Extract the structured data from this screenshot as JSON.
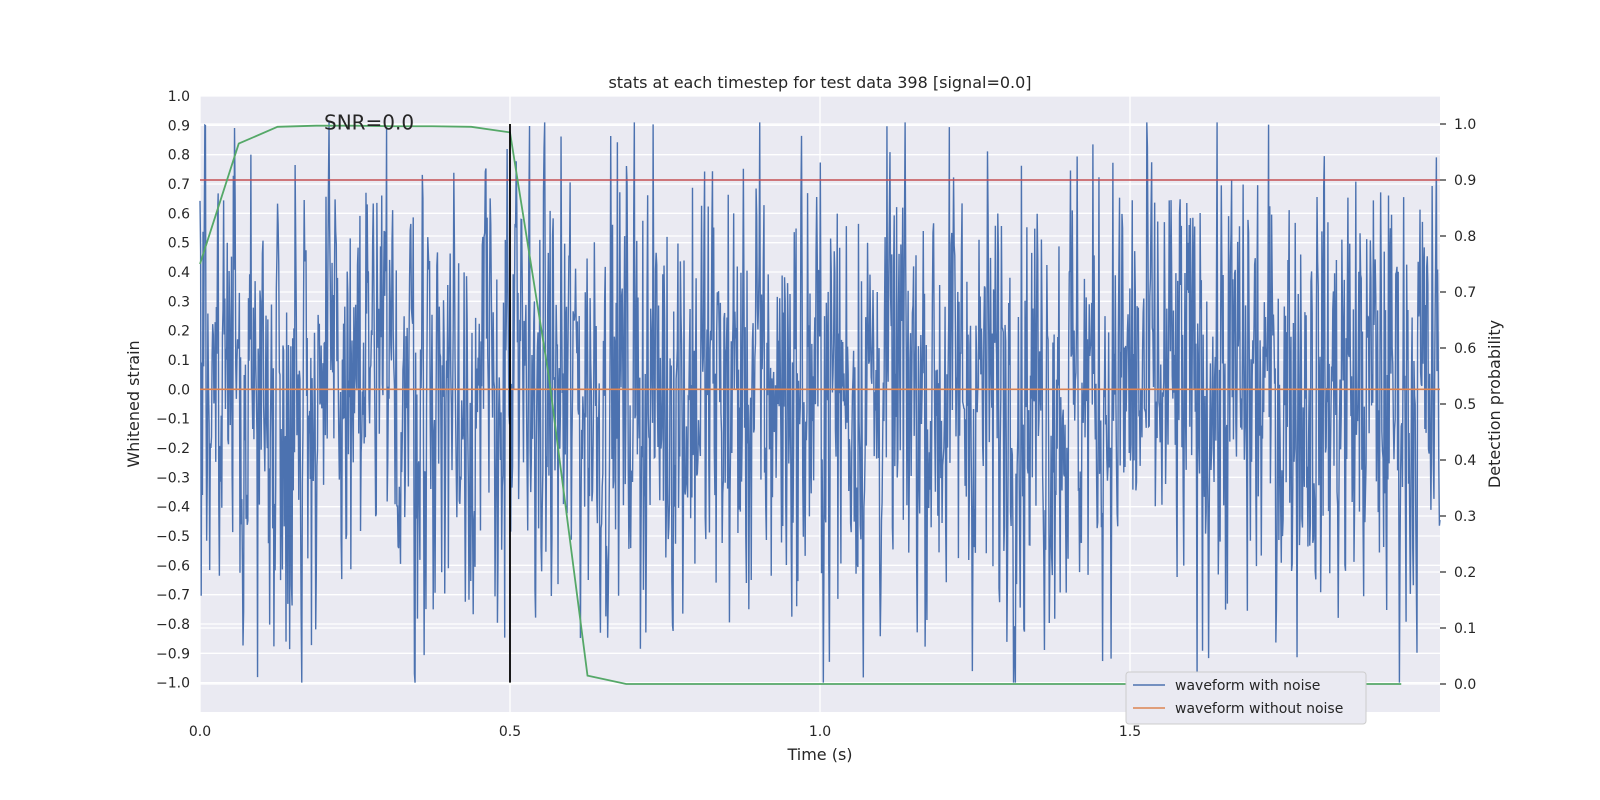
{
  "chart_data": {
    "type": "line",
    "title": "stats at each timestep for test data 398 [signal=0.0]",
    "xlabel": "Time (s)",
    "ylabel": "Whitened strain",
    "y2label": "Detection probability",
    "xlim": [
      0.0,
      2.0
    ],
    "ylim": [
      -1.1,
      1.0
    ],
    "y2lim": [
      -0.05,
      1.05
    ],
    "x_ticks": [
      0.0,
      0.5,
      1.0,
      1.5
    ],
    "x_tick_labels": [
      "0.0",
      "0.5",
      "1.0",
      "1.5"
    ],
    "y_ticks": [
      1.0,
      0.9,
      0.8,
      0.7,
      0.6,
      0.5,
      0.4,
      0.3,
      0.2,
      0.1,
      0.0,
      -0.1,
      -0.2,
      -0.3,
      -0.4,
      -0.5,
      -0.6,
      -0.7,
      -0.8,
      -0.9,
      -1.0
    ],
    "y_tick_labels": [
      "1.0",
      "0.9",
      "0.8",
      "0.7",
      "0.6",
      "0.5",
      "0.4",
      "0.3",
      "0.2",
      "0.1",
      "0.0",
      "−0.1",
      "−0.2",
      "−0.3",
      "−0.4",
      "−0.5",
      "−0.6",
      "−0.7",
      "−0.8",
      "−0.9",
      "−1.0"
    ],
    "y2_ticks": [
      1.0,
      0.9,
      0.8,
      0.7,
      0.6,
      0.5,
      0.4,
      0.3,
      0.2,
      0.1,
      0.0
    ],
    "y2_tick_labels": [
      "1.0",
      "0.9",
      "0.8",
      "0.7",
      "0.6",
      "0.5",
      "0.4",
      "0.3",
      "0.2",
      "0.1",
      "0.0"
    ],
    "grid": true,
    "legend_placement": "lower-right",
    "annotation": {
      "text": "SNR=0.0",
      "x": 0.2,
      "y": 0.91
    },
    "noise_waveform": {
      "name": "waveform with noise",
      "color": "#4c72b0",
      "x_start": 0.0,
      "x_end": 2.0,
      "y_range": [
        -1.0,
        0.91
      ]
    },
    "clean_waveform": {
      "name": "waveform without noise",
      "color": "#dd8452",
      "value": 0.0
    },
    "detection_probability": {
      "color": "#55a868",
      "axis": "right",
      "x": [
        0.0,
        0.0625,
        0.125,
        0.1875,
        0.25,
        0.3125,
        0.375,
        0.4375,
        0.5,
        0.5625,
        0.625,
        0.6875,
        0.75,
        0.8125,
        0.875,
        0.9375,
        1.0,
        1.0625,
        1.125,
        1.1875,
        1.25,
        1.3125,
        1.375,
        1.4375,
        1.5,
        1.5625,
        1.625,
        1.6875,
        1.75,
        1.8125,
        1.875,
        1.9375
      ],
      "y": [
        0.75,
        0.965,
        0.995,
        0.997,
        0.997,
        0.996,
        0.996,
        0.995,
        0.985,
        0.55,
        0.015,
        0.0,
        0.0,
        0.0,
        0.0,
        0.0,
        0.0,
        0.0,
        0.0,
        0.0,
        0.0,
        0.0,
        0.0,
        0.0,
        0.0,
        0.0,
        0.0,
        0.0,
        0.0,
        0.0,
        0.0,
        0.0
      ]
    },
    "threshold": {
      "color": "#c44e52",
      "axis": "right",
      "value": 0.9
    },
    "marker_line": {
      "color": "#000000",
      "x": 0.5
    }
  }
}
